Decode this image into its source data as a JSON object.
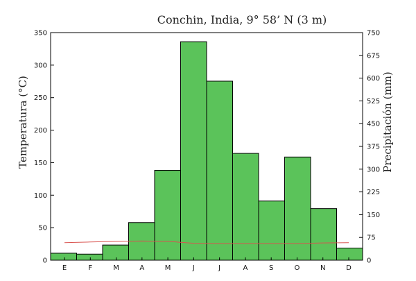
{
  "chart_data": {
    "type": "bar",
    "title": "Conchin, India, 9° 58’ N (3 m)",
    "ylabel_left": "Temperatura (°C)",
    "ylabel_right": "Precipitación (mm)",
    "categories": [
      "E",
      "F",
      "M",
      "A",
      "M",
      "J",
      "J",
      "A",
      "S",
      "O",
      "N",
      "D"
    ],
    "left_axis": {
      "range": [
        0,
        350
      ],
      "ticks": [
        0,
        50,
        100,
        150,
        200,
        250,
        300,
        350
      ]
    },
    "right_axis": {
      "range": [
        0,
        750
      ],
      "ticks": [
        0,
        75,
        150,
        225,
        300,
        375,
        450,
        525,
        600,
        675,
        750
      ]
    },
    "series": [
      {
        "name": "Precipitación",
        "type": "bar",
        "axis": "right",
        "color": "#5bc35a",
        "values": [
          23,
          20,
          50,
          124,
          296,
          720,
          590,
          352,
          195,
          340,
          170,
          40
        ]
      },
      {
        "name": "Temperatura",
        "type": "line",
        "axis": "left",
        "color": "#d9534f",
        "values": [
          27,
          28,
          29,
          29.5,
          29,
          26,
          25.5,
          25.5,
          25.5,
          25.5,
          26.5,
          27
        ]
      }
    ],
    "grid": false
  }
}
